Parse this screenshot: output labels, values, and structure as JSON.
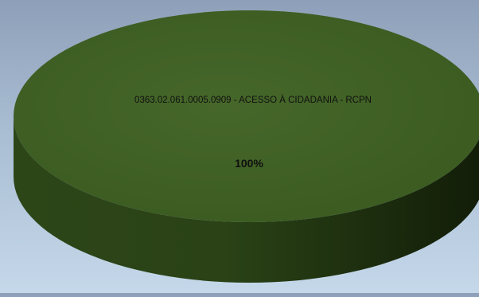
{
  "chart_data": {
    "type": "pie",
    "title": "",
    "categories": [
      "0363.02.061.0005.0909 - ACESSO À CIDADANIA - RCPN"
    ],
    "values": [
      100
    ],
    "data_labels": [
      "100%"
    ],
    "three_d": true,
    "legend": "none",
    "colors": {
      "slice_top": "#3f5f23",
      "slice_top_light": "#4a6b2a",
      "slice_side": "#2a4216",
      "slice_side_dark": "#142009",
      "label_text": "#101010"
    }
  }
}
